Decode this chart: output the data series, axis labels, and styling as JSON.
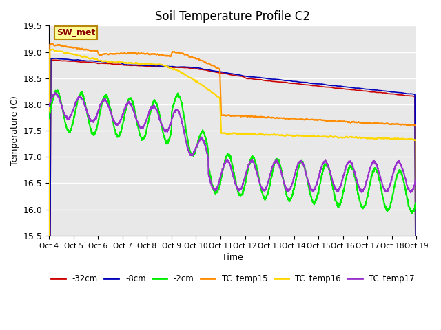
{
  "title": "Soil Temperature Profile C2",
  "xlabel": "Time",
  "ylabel": "Temperature (C)",
  "ylim": [
    15.5,
    19.5
  ],
  "xlim": [
    0,
    15
  ],
  "x_tick_labels": [
    "Oct 4",
    "Oct 5",
    "Oct 6",
    "Oct 7",
    "Oct 8",
    "Oct 9",
    "Oct 10",
    "Oct 11",
    "Oct 12",
    "Oct 13",
    "Oct 14",
    "Oct 15",
    "Oct 16",
    "Oct 17",
    "Oct 18",
    "Oct 19"
  ],
  "legend_entries": [
    "-32cm",
    "-8cm",
    "-2cm",
    "TC_temp15",
    "TC_temp16",
    "TC_temp17"
  ],
  "line_colors": [
    "#cc0000",
    "#0000bb",
    "#00ee00",
    "#ff8c00",
    "#ffd700",
    "#9932cc"
  ],
  "line_widths": [
    1.2,
    1.2,
    1.5,
    1.5,
    1.5,
    1.5
  ],
  "sw_met_label": "SW_met",
  "bg_color": "#e8e8e8",
  "title_fontsize": 12
}
